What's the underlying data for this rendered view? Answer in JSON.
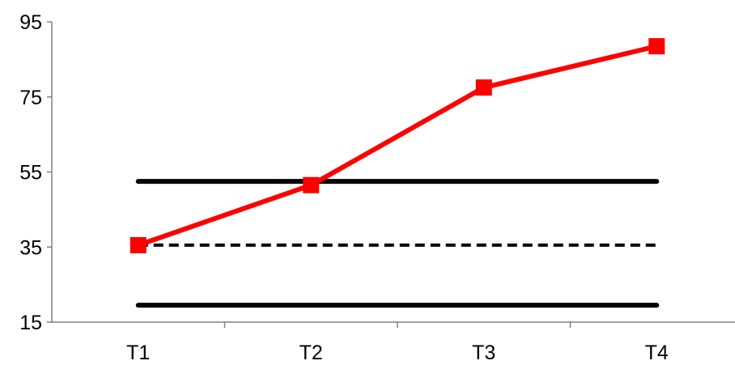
{
  "chart_data": {
    "type": "line",
    "title": "",
    "xlabel": "",
    "ylabel": "",
    "categories": [
      "T1",
      "T2",
      "T3",
      "T4"
    ],
    "ylim": [
      15,
      95
    ],
    "yticks": [
      15,
      35,
      55,
      75,
      95
    ],
    "grid": false,
    "series": [
      {
        "values": [
          35.5,
          51.5,
          77.5,
          88.5
        ],
        "color": "#ff0000",
        "style": "solid",
        "marker": "square"
      }
    ],
    "reference_lines": [
      {
        "value": 52.5,
        "color": "#000000",
        "style": "solid"
      },
      {
        "value": 35.5,
        "color": "#000000",
        "style": "dashed"
      },
      {
        "value": 19.5,
        "color": "#000000",
        "style": "solid"
      }
    ]
  }
}
